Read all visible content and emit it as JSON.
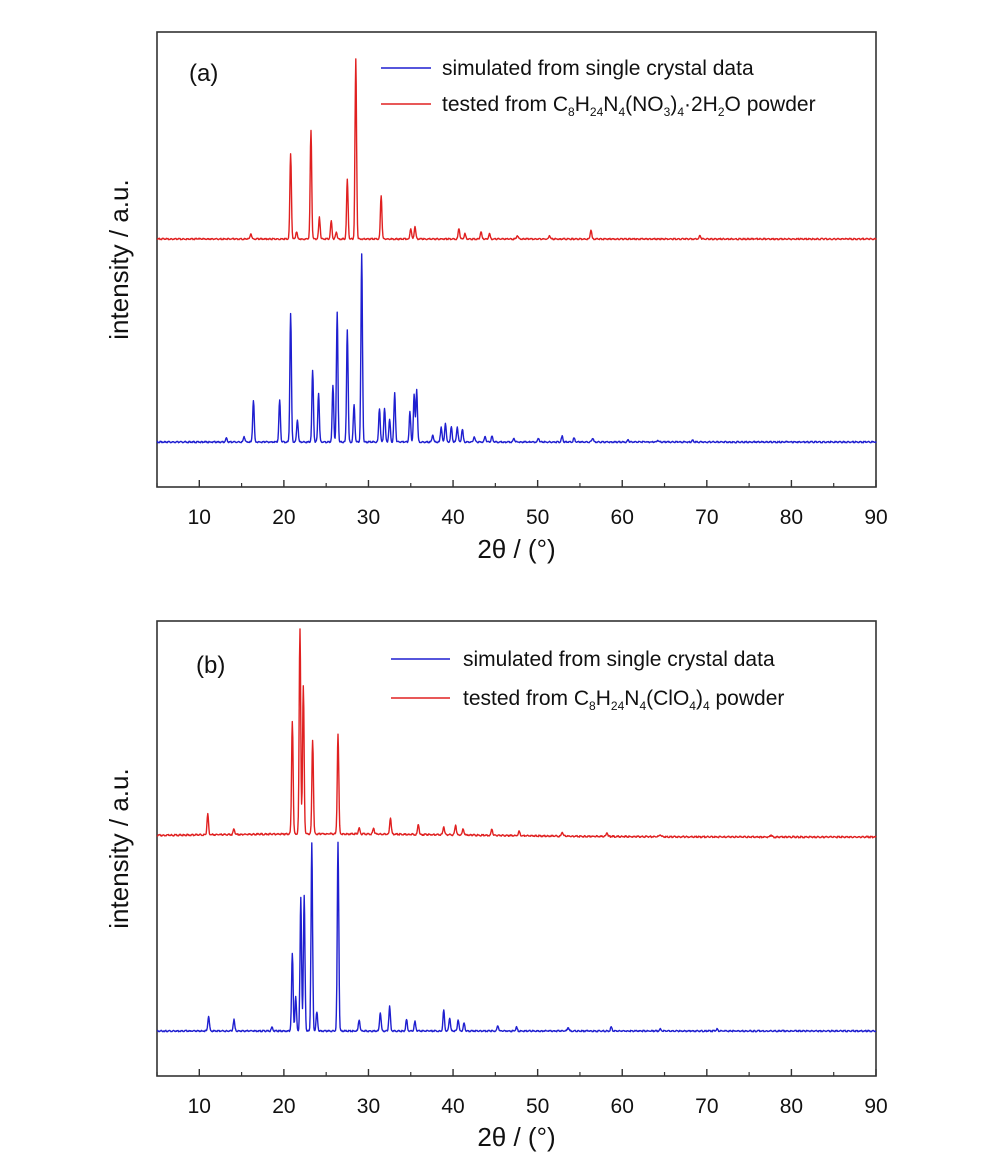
{
  "colors": {
    "simulated": "#1f1fd0",
    "tested": "#e02020",
    "axis": "#333333"
  },
  "chart_data": [
    {
      "type": "line",
      "panel_label": "(a)",
      "xlabel": "2θ / (°)",
      "ylabel": "intensity / a.u.",
      "xlim": [
        5,
        90
      ],
      "xticks": [
        10,
        20,
        30,
        40,
        50,
        60,
        70,
        80,
        90
      ],
      "yticks": [],
      "legend_position": "top-right",
      "series": [
        {
          "name": "simulated from single crystal data",
          "legend": [
            "simulated from single crystal data"
          ],
          "color": "#1f1fd0",
          "baseline": 0,
          "peaks": [
            [
              13.2,
              0.02
            ],
            [
              15.3,
              0.03
            ],
            [
              16.4,
              0.22
            ],
            [
              19.5,
              0.22
            ],
            [
              20.8,
              0.68
            ],
            [
              21.6,
              0.12
            ],
            [
              23.4,
              0.38
            ],
            [
              24.1,
              0.26
            ],
            [
              25.8,
              0.3
            ],
            [
              26.3,
              0.69
            ],
            [
              27.5,
              0.6
            ],
            [
              28.3,
              0.2
            ],
            [
              29.2,
              1.0
            ],
            [
              31.3,
              0.18
            ],
            [
              31.9,
              0.18
            ],
            [
              32.5,
              0.12
            ],
            [
              33.1,
              0.26
            ],
            [
              34.9,
              0.16
            ],
            [
              35.4,
              0.25
            ],
            [
              35.7,
              0.28
            ],
            [
              37.6,
              0.04
            ],
            [
              38.6,
              0.08
            ],
            [
              39.1,
              0.1
            ],
            [
              39.8,
              0.08
            ],
            [
              40.5,
              0.08
            ],
            [
              41.1,
              0.07
            ],
            [
              42.5,
              0.03
            ],
            [
              43.8,
              0.03
            ],
            [
              44.6,
              0.03
            ],
            [
              47.2,
              0.02
            ],
            [
              50.1,
              0.02
            ],
            [
              52.9,
              0.03
            ],
            [
              54.3,
              0.02
            ],
            [
              56.5,
              0.02
            ],
            [
              60.7,
              0.01
            ],
            [
              64.2,
              0.01
            ],
            [
              68.3,
              0.01
            ]
          ]
        },
        {
          "name": "tested from C8H24N4(NO3)4·2H2O powder",
          "legend": [
            "tested from C",
            "8",
            "H",
            "24",
            "N",
            "4",
            "(NO",
            "3",
            ")",
            "4",
            "·2H",
            "2",
            "O powder"
          ],
          "color": "#e02020",
          "baseline": 0,
          "peaks": [
            [
              16.1,
              0.03
            ],
            [
              20.8,
              0.47
            ],
            [
              21.5,
              0.04
            ],
            [
              23.2,
              0.6
            ],
            [
              24.2,
              0.12
            ],
            [
              25.6,
              0.1
            ],
            [
              26.2,
              0.04
            ],
            [
              27.5,
              0.33
            ],
            [
              28.5,
              1.0
            ],
            [
              31.5,
              0.24
            ],
            [
              35.0,
              0.06
            ],
            [
              35.5,
              0.07
            ],
            [
              40.7,
              0.06
            ],
            [
              41.4,
              0.03
            ],
            [
              43.3,
              0.04
            ],
            [
              44.3,
              0.03
            ],
            [
              47.6,
              0.02
            ],
            [
              51.4,
              0.02
            ],
            [
              56.3,
              0.05
            ],
            [
              69.2,
              0.02
            ]
          ]
        }
      ]
    },
    {
      "type": "line",
      "panel_label": "(b)",
      "xlabel": "2θ / (°)",
      "ylabel": "intensity / a.u.",
      "xlim": [
        5,
        90
      ],
      "xticks": [
        10,
        20,
        30,
        40,
        50,
        60,
        70,
        80,
        90
      ],
      "yticks": [],
      "legend_position": "top-right",
      "series": [
        {
          "name": "simulated from single crystal data",
          "legend": [
            "simulated from single crystal data"
          ],
          "color": "#1f1fd0",
          "baseline": 0,
          "peaks": [
            [
              11.1,
              0.08
            ],
            [
              14.1,
              0.06
            ],
            [
              18.6,
              0.02
            ],
            [
              21.0,
              0.41
            ],
            [
              21.4,
              0.18
            ],
            [
              22.0,
              0.71
            ],
            [
              22.4,
              0.72
            ],
            [
              23.3,
              1.0
            ],
            [
              23.9,
              0.1
            ],
            [
              26.4,
              1.0
            ],
            [
              28.9,
              0.06
            ],
            [
              31.4,
              0.1
            ],
            [
              32.5,
              0.13
            ],
            [
              34.5,
              0.06
            ],
            [
              35.5,
              0.05
            ],
            [
              38.9,
              0.11
            ],
            [
              39.6,
              0.07
            ],
            [
              40.6,
              0.06
            ],
            [
              41.3,
              0.04
            ],
            [
              45.3,
              0.03
            ],
            [
              47.5,
              0.02
            ],
            [
              53.6,
              0.02
            ],
            [
              58.7,
              0.02
            ],
            [
              64.5,
              0.01
            ],
            [
              71.2,
              0.01
            ]
          ]
        },
        {
          "name": "tested from C8H24N4(ClO4)4 powder",
          "legend": [
            "tested from C",
            "8",
            "H",
            "24",
            "N",
            "4",
            "(ClO",
            "4",
            ")",
            "4",
            " powder"
          ],
          "color": "#e02020",
          "baseline": 0.015,
          "peaks": [
            [
              11.0,
              0.1
            ],
            [
              14.1,
              0.03
            ],
            [
              21.0,
              0.55
            ],
            [
              21.9,
              1.0
            ],
            [
              22.3,
              0.72
            ],
            [
              23.4,
              0.46
            ],
            [
              26.4,
              0.49
            ],
            [
              28.9,
              0.03
            ],
            [
              30.6,
              0.03
            ],
            [
              32.6,
              0.08
            ],
            [
              35.9,
              0.05
            ],
            [
              38.9,
              0.04
            ],
            [
              40.3,
              0.05
            ],
            [
              41.2,
              0.03
            ],
            [
              44.6,
              0.03
            ],
            [
              47.8,
              0.02
            ],
            [
              52.9,
              0.02
            ],
            [
              58.2,
              0.02
            ],
            [
              64.5,
              0.01
            ],
            [
              77.6,
              0.01
            ]
          ]
        }
      ]
    }
  ]
}
